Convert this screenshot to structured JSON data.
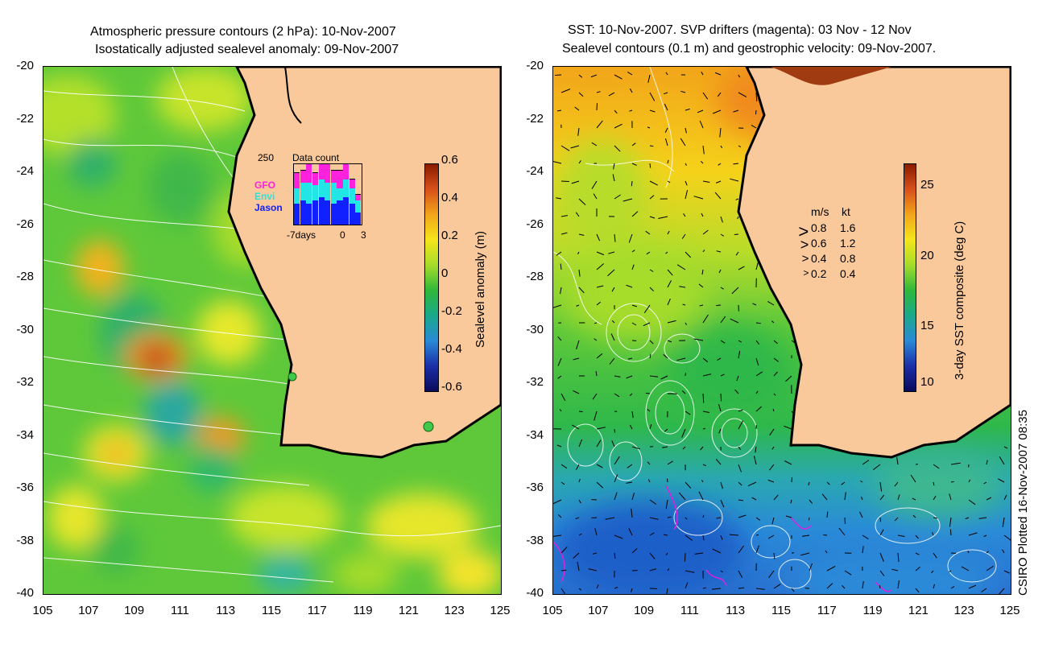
{
  "left_panel": {
    "title_line1": "Atmospheric pressure contours (2 hPa): 10-Nov-2007",
    "title_line2": "Isostatically adjusted sealevel anomaly: 09-Nov-2007",
    "colorbar": {
      "label": "Sealevel anomaly (m)",
      "ticks": [
        "0.6",
        "0.4",
        "0.2",
        "0",
        "-0.2",
        "-0.4",
        "-0.6"
      ],
      "colors": [
        "#8a1c00",
        "#d8501a",
        "#f2a51a",
        "#f5e51a",
        "#a6dc2a",
        "#2fb83a",
        "#19a98a",
        "#2a8ad8",
        "#1b2fa8",
        "#0a0a5a"
      ]
    },
    "inset": {
      "max_label": "250",
      "title": "Data count",
      "legend": [
        {
          "name": "GFO",
          "color": "#ff22dd"
        },
        {
          "name": "Envi",
          "color": "#22e6e6"
        },
        {
          "name": "Jason",
          "color": "#1020ff"
        }
      ],
      "x_labels": [
        "-7days",
        "0",
        "3"
      ],
      "bars": [
        {
          "jason": 0.35,
          "envi": 0.25,
          "gfo": 0.25
        },
        {
          "jason": 0.4,
          "envi": 0.3,
          "gfo": 0.2
        },
        {
          "jason": 0.35,
          "envi": 0.35,
          "gfo": 0.3
        },
        {
          "jason": 0.4,
          "envi": 0.25,
          "gfo": 0.2
        },
        {
          "jason": 0.45,
          "envi": 0.3,
          "gfo": 0.25
        },
        {
          "jason": 0.4,
          "envi": 0.3,
          "gfo": 0.3
        },
        {
          "jason": 0.35,
          "envi": 0.35,
          "gfo": 0.2
        },
        {
          "jason": 0.4,
          "envi": 0.2,
          "gfo": 0.3
        },
        {
          "jason": 0.45,
          "envi": 0.3,
          "gfo": 0.25
        },
        {
          "jason": 0.35,
          "envi": 0.25,
          "gfo": 0.15
        },
        {
          "jason": 0.2,
          "envi": 0.2,
          "gfo": 0.1
        }
      ]
    }
  },
  "right_panel": {
    "title_line1": "SST: 10-Nov-2007. SVP drifters (magenta): 03 Nov - 12 Nov",
    "title_line2": "Sealevel contours (0.1 m) and geostrophic velocity: 09-Nov-2007.",
    "colorbar": {
      "label": "3-day SST composite (deg C)",
      "ticks": [
        "25",
        "20",
        "15",
        "10"
      ],
      "colors": [
        "#8a1c00",
        "#d8501a",
        "#f2a51a",
        "#f5e51a",
        "#a6dc2a",
        "#2fb83a",
        "#19a98a",
        "#2a8ad8",
        "#1b2fa8",
        "#0a0a5a"
      ]
    },
    "velocity_legend": {
      "header_ms": "m/s",
      "header_kt": "kt",
      "rows": [
        {
          "ms": "0.8",
          "kt": "1.6"
        },
        {
          "ms": "0.6",
          "kt": "1.2"
        },
        {
          "ms": "0.4",
          "kt": "0.8"
        },
        {
          "ms": "0.2",
          "kt": "0.4"
        }
      ]
    }
  },
  "axes": {
    "lat_ticks": [
      "-20",
      "-22",
      "-24",
      "-26",
      "-28",
      "-30",
      "-32",
      "-34",
      "-36",
      "-38",
      "-40"
    ],
    "lon_ticks": [
      "105",
      "107",
      "109",
      "111",
      "113",
      "115",
      "117",
      "119",
      "121",
      "123",
      "125"
    ]
  },
  "credit": "CSIRO Plotted 16-Nov-2007 08:35",
  "colors": {
    "land": "#f9c89b",
    "coast": "#000000",
    "contour": "#ffffff"
  }
}
